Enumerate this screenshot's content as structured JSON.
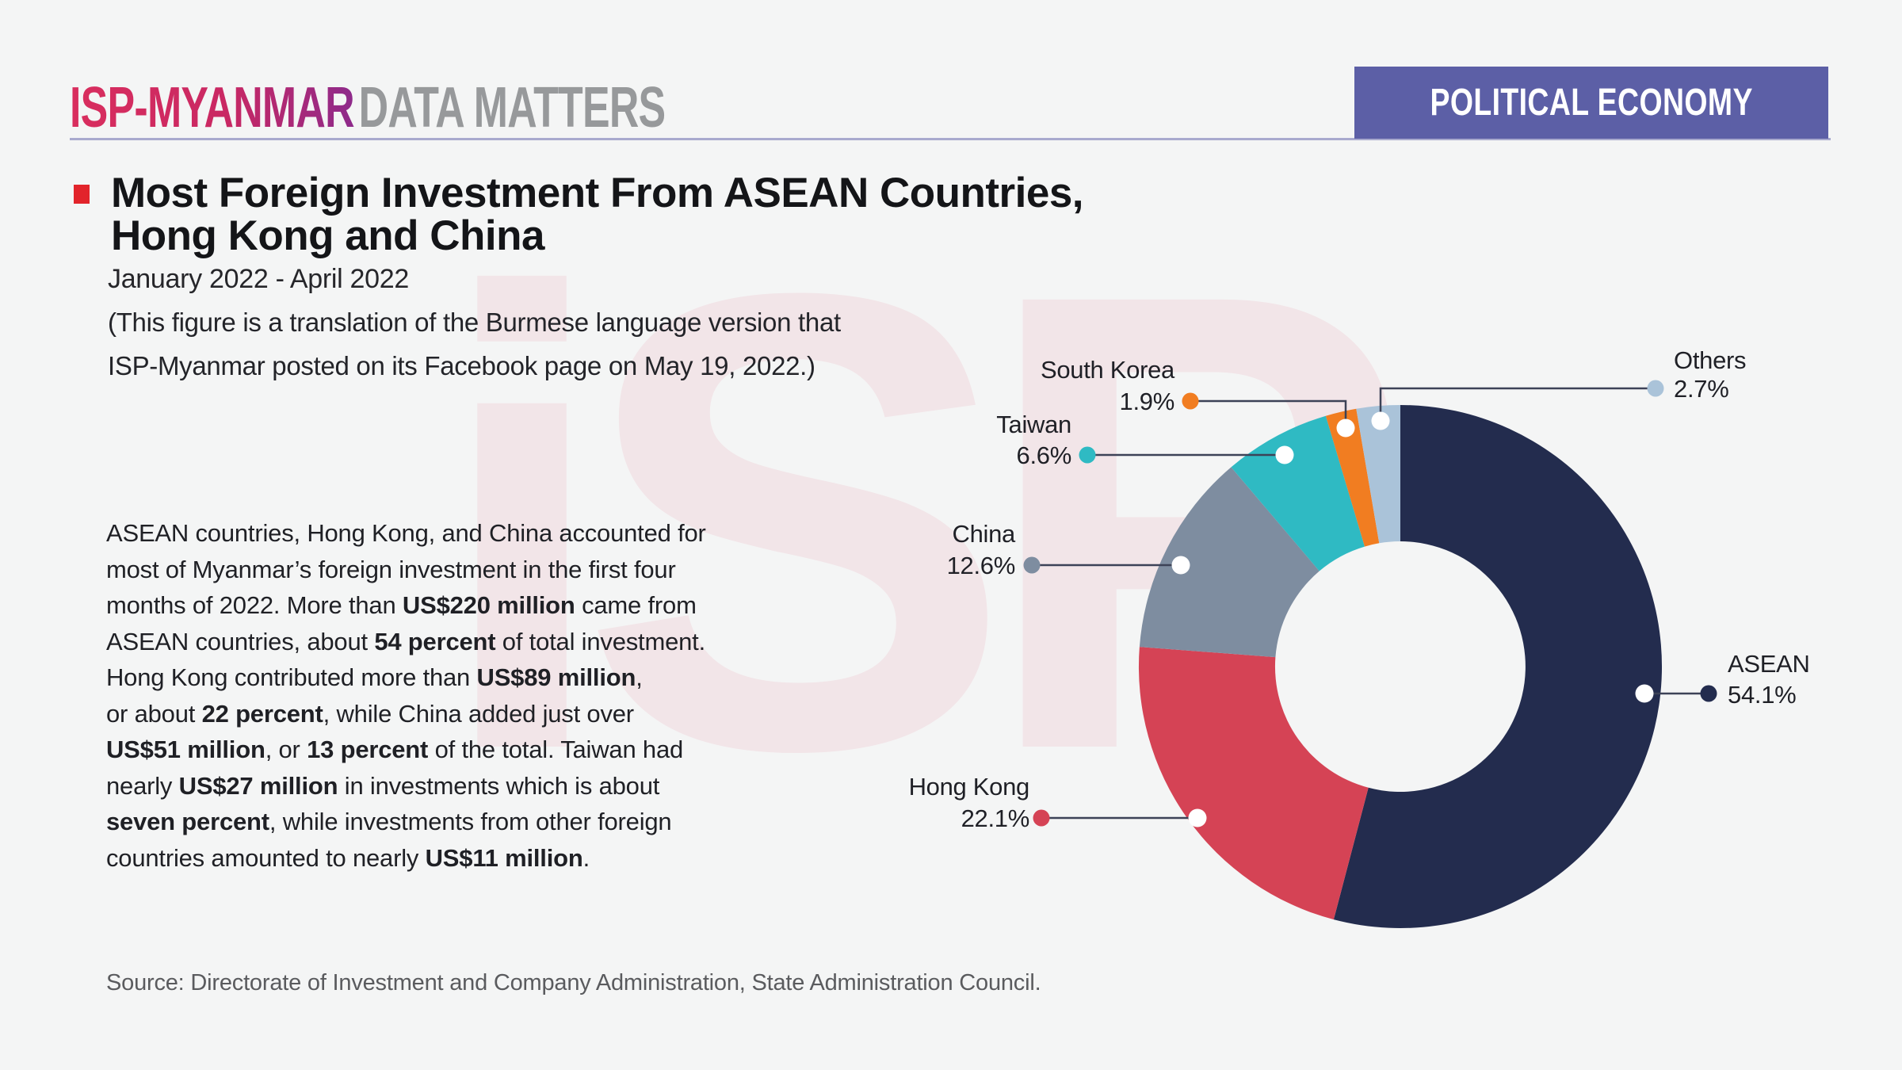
{
  "page": {
    "background": "#f4f5f5",
    "watermark_text": "iSP"
  },
  "header": {
    "logo_primary": "ISP-MYANMAR",
    "logo_secondary": "DATA MATTERS",
    "category_banner": "POLITICAL ECONOMY",
    "banner_color": "#5c5fa6"
  },
  "title": {
    "line1": "Most Foreign Investment From ASEAN Countries,",
    "line2": "Hong Kong and China",
    "subtitle": "January 2022 - April 2022",
    "note_line1": "(This figure is a translation of the Burmese language version that",
    "note_line2": "ISP-Myanmar posted on its Facebook page on May 19, 2022.)"
  },
  "paragraph": {
    "lines": [
      [
        {
          "t": "ASEAN countries, Hong Kong, and China accounted for"
        }
      ],
      [
        {
          "t": "most of Myanmar’s foreign investment in the first four"
        }
      ],
      [
        {
          "t": "months of 2022. More than "
        },
        {
          "t": "US$220 million",
          "b": 1
        },
        {
          "t": " came from"
        }
      ],
      [
        {
          "t": "ASEAN countries, about "
        },
        {
          "t": "54 percent",
          "b": 1
        },
        {
          "t": " of total investment."
        }
      ],
      [
        {
          "t": "Hong Kong contributed more than "
        },
        {
          "t": "US$89 million",
          "b": 1
        },
        {
          "t": ","
        }
      ],
      [
        {
          "t": "or about "
        },
        {
          "t": "22 percent",
          "b": 1
        },
        {
          "t": ", while China added just over"
        }
      ],
      [
        {
          "t": "US$51 million",
          "b": 1
        },
        {
          "t": ", or "
        },
        {
          "t": "13 percent",
          "b": 1
        },
        {
          "t": " of the total. Taiwan had"
        }
      ],
      [
        {
          "t": "nearly "
        },
        {
          "t": "US$27 million",
          "b": 1
        },
        {
          "t": " in investments which is about"
        }
      ],
      [
        {
          "t": "seven percent",
          "b": 1
        },
        {
          "t": ", while investments from other foreign"
        }
      ],
      [
        {
          "t": "countries amounted to nearly "
        },
        {
          "t": "US$11 million",
          "b": 1
        },
        {
          "t": "."
        }
      ]
    ]
  },
  "source": "Source: Directorate of Investment and Company Administration, State Administration Council.",
  "chart_data": {
    "type": "pie",
    "subtype": "donut",
    "title": "Most Foreign Investment From ASEAN Countries, Hong Kong and China",
    "period": "January 2022 - April 2022",
    "direction": "clockwise",
    "start_angle_deg": 0,
    "inner_radius_ratio": 0.48,
    "legend_position": "callout-labels",
    "segments": [
      {
        "label": "ASEAN",
        "value": 54.1,
        "display": "54.1%",
        "color": "#232c4e"
      },
      {
        "label": "Hong Kong",
        "value": 22.1,
        "display": "22.1%",
        "color": "#d54355"
      },
      {
        "label": "China",
        "value": 12.6,
        "display": "12.6%",
        "color": "#7e8da0"
      },
      {
        "label": "Taiwan",
        "value": 6.6,
        "display": "6.6%",
        "color": "#2fbac3"
      },
      {
        "label": "South Korea",
        "value": 1.9,
        "display": "1.9%",
        "color": "#f17d21"
      },
      {
        "label": "Others",
        "value": 2.7,
        "display": "2.7%",
        "color": "#aac3d9"
      }
    ]
  }
}
